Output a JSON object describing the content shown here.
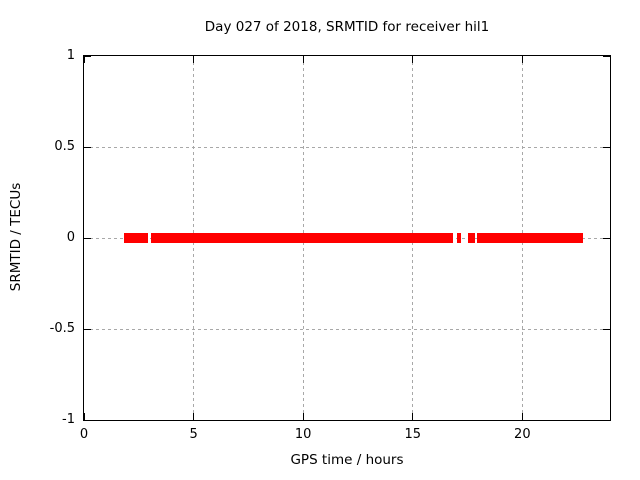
{
  "chart_data": {
    "type": "scatter",
    "title": "Day 027 of 2018, SRMTID for receiver hil1",
    "xlabel": "GPS time / hours",
    "ylabel": "SRMTID / TECUs",
    "xlim": [
      0,
      24
    ],
    "ylim": [
      -1,
      1
    ],
    "x_ticks": [
      0,
      5,
      10,
      15,
      20
    ],
    "y_ticks": [
      -1,
      -0.5,
      0,
      0.5,
      1
    ],
    "grid": true,
    "legend_position": "none",
    "background_color": "#ffffff",
    "border_color": "#000000",
    "grid_color": "#a8a8a8",
    "series": [
      {
        "name": "SRMTID",
        "color": "#ff0000",
        "y_value": 0,
        "marker": "thick-horizontal-band",
        "segments_hours": [
          [
            1.83,
            2.93
          ],
          [
            3.07,
            16.82
          ],
          [
            17.02,
            17.2
          ],
          [
            17.5,
            17.84
          ],
          [
            17.95,
            22.78
          ]
        ]
      }
    ]
  }
}
